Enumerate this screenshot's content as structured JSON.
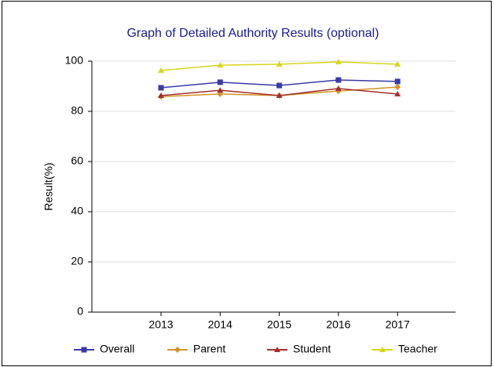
{
  "chart_data": {
    "type": "line",
    "title": "Graph of Detailed Authority Results (optional)",
    "y_label": "Result(%)",
    "categories": [
      "2013",
      "2014",
      "2015",
      "2016",
      "2017"
    ],
    "series": [
      {
        "name": "Overall",
        "color": "#3a3aa8",
        "marker": "square",
        "values": [
          89.4,
          91.6,
          90.3,
          92.5,
          91.9
        ]
      },
      {
        "name": "Parent",
        "color": "#d4922a",
        "marker": "diamond",
        "values": [
          85.9,
          86.9,
          86.3,
          88.1,
          89.7
        ]
      },
      {
        "name": "Student",
        "color": "#a3302c",
        "marker": "triangle",
        "values": [
          86.3,
          88.4,
          86.3,
          89.1,
          86.9
        ]
      },
      {
        "name": "Teacher",
        "color": "#d6d61e",
        "marker": "triangle",
        "values": [
          96.3,
          98.4,
          98.8,
          99.7,
          98.8
        ]
      }
    ],
    "ylim": [
      0,
      100
    ],
    "yticks": [
      0,
      20,
      40,
      60,
      80,
      100
    ],
    "grid": true,
    "legend": "bottom"
  }
}
